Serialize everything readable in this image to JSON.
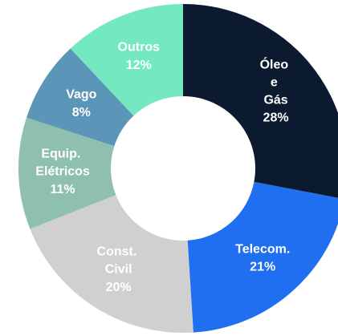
{
  "chart_data": {
    "type": "donut",
    "categories": [
      "Óleo e Gás",
      "Telecom.",
      "Const. Civil",
      "Equip. Elétricos",
      "Vago",
      "Outros"
    ],
    "values": [
      28,
      21,
      20,
      11,
      8,
      12
    ],
    "value_labels": [
      "28%",
      "21%",
      "20%",
      "11%",
      "8%",
      "12%"
    ],
    "colors": [
      "#0b1a2e",
      "#1f6ff0",
      "#d0d0d0",
      "#8fbfae",
      "#5b95b8",
      "#74e8c0"
    ]
  }
}
